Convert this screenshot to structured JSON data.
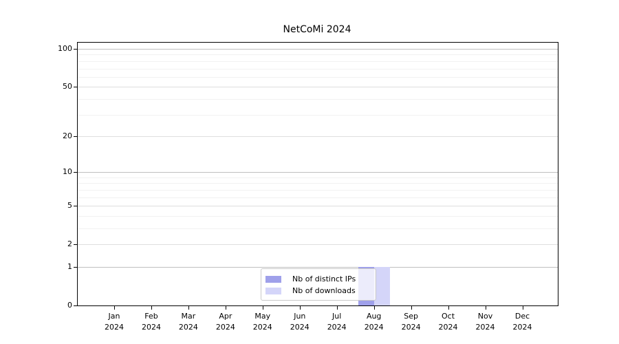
{
  "title": "NetCoMi 2024",
  "legend": {
    "items": [
      {
        "label": "Nb of distinct IPs",
        "color": "#9fa0ea"
      },
      {
        "label": "Nb of downloads",
        "color": "#d4d5f9"
      }
    ]
  },
  "chart_data": {
    "type": "bar",
    "title": "NetCoMi 2024",
    "xlabel": "",
    "ylabel": "",
    "yscale": "log1p",
    "ylim": [
      0,
      100
    ],
    "grid": "on",
    "legend_position": "bottom-center",
    "categories": [
      "Jan 2024",
      "Feb 2024",
      "Mar 2024",
      "Apr 2024",
      "May 2024",
      "Jun 2024",
      "Jul 2024",
      "Aug 2024",
      "Sep 2024",
      "Oct 2024",
      "Nov 2024",
      "Dec 2024"
    ],
    "month_labels": [
      {
        "month": "Jan",
        "year": "2024"
      },
      {
        "month": "Feb",
        "year": "2024"
      },
      {
        "month": "Mar",
        "year": "2024"
      },
      {
        "month": "Apr",
        "year": "2024"
      },
      {
        "month": "May",
        "year": "2024"
      },
      {
        "month": "Jun",
        "year": "2024"
      },
      {
        "month": "Jul",
        "year": "2024"
      },
      {
        "month": "Aug",
        "year": "2024"
      },
      {
        "month": "Sep",
        "year": "2024"
      },
      {
        "month": "Oct",
        "year": "2024"
      },
      {
        "month": "Nov",
        "year": "2024"
      },
      {
        "month": "Dec",
        "year": "2024"
      }
    ],
    "yticks": [
      0,
      1,
      2,
      5,
      10,
      20,
      50,
      100
    ],
    "yticks_decade": [
      1,
      10,
      100
    ],
    "yticks_minor": [
      3,
      4,
      6,
      7,
      8,
      9,
      30,
      40,
      60,
      70,
      80,
      90
    ],
    "series": [
      {
        "name": "Nb of distinct IPs",
        "color": "#9fa0ea",
        "values": [
          0,
          0,
          0,
          0,
          0,
          0,
          0,
          1,
          0,
          0,
          0,
          0
        ]
      },
      {
        "name": "Nb of downloads",
        "color": "#d4d5f9",
        "values": [
          0,
          0,
          0,
          0,
          0,
          0,
          0,
          1,
          0,
          0,
          0,
          0
        ]
      }
    ]
  }
}
